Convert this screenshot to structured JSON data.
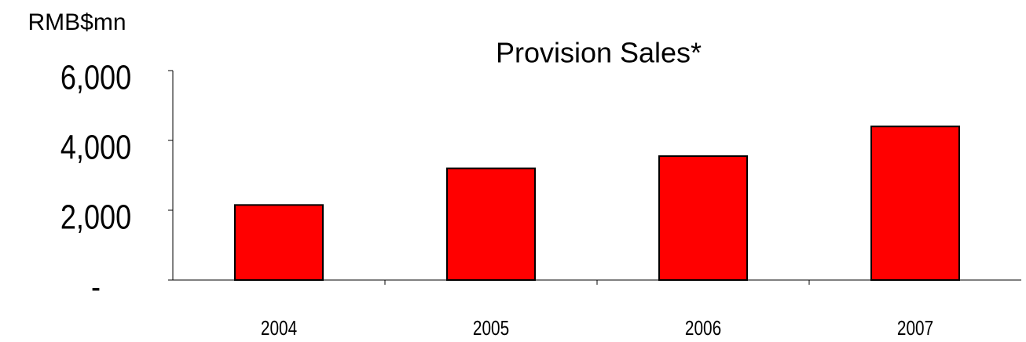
{
  "chart_data": {
    "type": "bar",
    "title": "Provision Sales*",
    "y_label": "RMB$mn",
    "categories": [
      "2004",
      "2005",
      "2006",
      "2007"
    ],
    "values": [
      2150,
      3200,
      3550,
      4400
    ],
    "color": "#ff0000",
    "ylim": [
      0,
      6000
    ],
    "yticks": [
      {
        "value": 0,
        "label": "-"
      },
      {
        "value": 2000,
        "label": "2,000"
      },
      {
        "value": 4000,
        "label": "4,000"
      },
      {
        "value": 6000,
        "label": "6,000"
      }
    ]
  }
}
